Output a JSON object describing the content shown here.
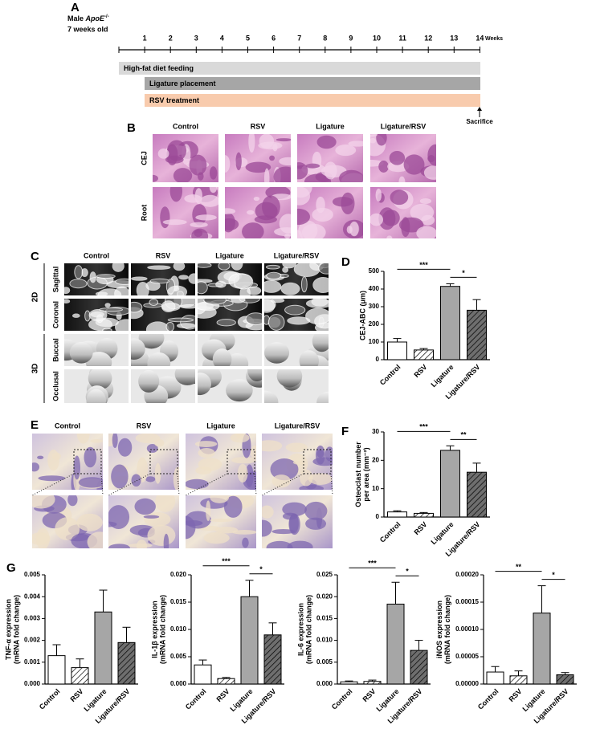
{
  "panel_labels": [
    "A",
    "B",
    "C",
    "D",
    "E",
    "F",
    "G"
  ],
  "timeline": {
    "subject_prefix": "Male",
    "subject_gene": "ApoE",
    "subject_genotype": "-/-",
    "age": "7 weeks old",
    "ticks": [
      1,
      2,
      3,
      4,
      5,
      6,
      7,
      8,
      9,
      10,
      11,
      12,
      13,
      14
    ],
    "unit": "Weeks",
    "bars": [
      "High-fat diet feeding",
      "Ligature placement",
      "RSV treatment"
    ],
    "endpoint": "Sacrifice"
  },
  "histology": {
    "columns": [
      "Control",
      "RSV",
      "Ligature",
      "Ligature/RSV"
    ],
    "rows": [
      "CEJ",
      "Root"
    ]
  },
  "microct": {
    "columns": [
      "Control",
      "RSV",
      "Ligature",
      "Ligature/RSV"
    ],
    "rows": [
      "Sagittal",
      "Coronal",
      "Buccal",
      "Occlusal"
    ],
    "groups": [
      "2D",
      "3D"
    ]
  },
  "trap": {
    "columns": [
      "Control",
      "RSV",
      "Ligature",
      "Ligature/RSV"
    ]
  },
  "chart_data": [
    {
      "type": "bar",
      "ylabel": [
        "CEJ-ABC (μm)"
      ],
      "categories": [
        "Control",
        "RSV",
        "Ligature",
        "Ligature/RSV"
      ],
      "values": [
        100,
        55,
        415,
        280
      ],
      "errors": [
        20,
        8,
        15,
        60
      ],
      "colors": [
        "#ffffff",
        "#ffffff",
        "#a6a6a6",
        "#6e6e6e"
      ],
      "hatch": [
        false,
        true,
        false,
        true
      ],
      "ylim": [
        0,
        500
      ],
      "yticks": [
        0,
        100,
        200,
        300,
        400,
        500
      ],
      "annotations": [
        {
          "label": "***",
          "from": "Control",
          "to": "Ligature"
        },
        {
          "label": "*",
          "from": "Ligature",
          "to": "Ligature/RSV"
        }
      ]
    },
    {
      "type": "bar",
      "ylabel": [
        "Osteoclast number",
        "per area (mm⁻²)"
      ],
      "categories": [
        "Control",
        "RSV",
        "Ligature",
        "Ligature/RSV"
      ],
      "values": [
        1.8,
        1.3,
        23.5,
        15.8
      ],
      "errors": [
        0.4,
        0.3,
        1.6,
        3.2
      ],
      "colors": [
        "#ffffff",
        "#ffffff",
        "#a6a6a6",
        "#6e6e6e"
      ],
      "hatch": [
        false,
        true,
        false,
        true
      ],
      "ylim": [
        0,
        30
      ],
      "yticks": [
        0,
        10,
        20,
        30
      ],
      "annotations": [
        {
          "label": "***",
          "from": "Control",
          "to": "Ligature"
        },
        {
          "label": "**",
          "from": "Ligature",
          "to": "Ligature/RSV"
        }
      ]
    },
    {
      "type": "bar",
      "ylabel": [
        "TNF-α expression",
        "(mRNA fold change)"
      ],
      "categories": [
        "Control",
        "RSV",
        "Ligature",
        "Ligature/RSV"
      ],
      "values": [
        0.0013,
        0.00075,
        0.0033,
        0.0019
      ],
      "errors": [
        0.0005,
        0.0004,
        0.001,
        0.0007
      ],
      "colors": [
        "#ffffff",
        "#ffffff",
        "#a6a6a6",
        "#6e6e6e"
      ],
      "hatch": [
        false,
        true,
        false,
        true
      ],
      "ylim": [
        0,
        0.005
      ],
      "yticks": [
        {
          "value": 0,
          "label": "0.000"
        },
        {
          "value": 0.001,
          "label": "0.001"
        },
        {
          "value": 0.002,
          "label": "0.002"
        },
        {
          "value": 0.003,
          "label": "0.003"
        },
        {
          "value": 0.004,
          "label": "0.004"
        },
        {
          "value": 0.005,
          "label": "0.005"
        }
      ],
      "annotations": []
    },
    {
      "type": "bar",
      "ylabel": [
        "IL-1β expression",
        "(mRNA fold change)"
      ],
      "categories": [
        "Control",
        "RSV",
        "Ligature",
        "Ligature/RSV"
      ],
      "values": [
        0.0035,
        0.001,
        0.016,
        0.009
      ],
      "errors": [
        0.0009,
        0.0002,
        0.003,
        0.0022
      ],
      "colors": [
        "#ffffff",
        "#ffffff",
        "#a6a6a6",
        "#6e6e6e"
      ],
      "hatch": [
        false,
        true,
        false,
        true
      ],
      "ylim": [
        0,
        0.02
      ],
      "yticks": [
        {
          "value": 0,
          "label": "0.000"
        },
        {
          "value": 0.005,
          "label": "0.005"
        },
        {
          "value": 0.01,
          "label": "0.010"
        },
        {
          "value": 0.015,
          "label": "0.015"
        },
        {
          "value": 0.02,
          "label": "0.020"
        }
      ],
      "annotations": [
        {
          "label": "***",
          "from": "Control",
          "to": "Ligature"
        },
        {
          "label": "*",
          "from": "Ligature",
          "to": "Ligature/RSV"
        }
      ]
    },
    {
      "type": "bar",
      "ylabel": [
        "IL-6 expression",
        "(mRNA fold change)"
      ],
      "categories": [
        "Control",
        "RSV",
        "Ligature",
        "Ligature/RSV"
      ],
      "values": [
        0.0005,
        0.0006,
        0.0183,
        0.0077
      ],
      "errors": [
        0.0002,
        0.0003,
        0.005,
        0.0023
      ],
      "colors": [
        "#ffffff",
        "#ffffff",
        "#a6a6a6",
        "#6e6e6e"
      ],
      "hatch": [
        false,
        true,
        false,
        true
      ],
      "ylim": [
        0,
        0.025
      ],
      "yticks": [
        {
          "value": 0,
          "label": "0.000"
        },
        {
          "value": 0.005,
          "label": "0.005"
        },
        {
          "value": 0.01,
          "label": "0.010"
        },
        {
          "value": 0.015,
          "label": "0.015"
        },
        {
          "value": 0.02,
          "label": "0.020"
        },
        {
          "value": 0.025,
          "label": "0.025"
        }
      ],
      "annotations": [
        {
          "label": "***",
          "from": "Control",
          "to": "Ligature"
        },
        {
          "label": "*",
          "from": "Ligature",
          "to": "Ligature/RSV"
        }
      ]
    },
    {
      "type": "bar",
      "ylabel": [
        "iNOS expression",
        "(mRNA fold change)"
      ],
      "categories": [
        "Control",
        "RSV",
        "Ligature",
        "Ligature/RSV"
      ],
      "values": [
        2.2e-05,
        1.5e-05,
        0.00013,
        1.7e-05
      ],
      "errors": [
        1e-05,
        9e-06,
        5e-05,
        4e-06
      ],
      "colors": [
        "#ffffff",
        "#ffffff",
        "#a6a6a6",
        "#6e6e6e"
      ],
      "hatch": [
        false,
        true,
        false,
        true
      ],
      "ylim": [
        0,
        0.0002
      ],
      "yticks": [
        {
          "value": 0,
          "label": "0.00000"
        },
        {
          "value": 5e-05,
          "label": "0.00005"
        },
        {
          "value": 0.0001,
          "label": "0.00010"
        },
        {
          "value": 0.00015,
          "label": "0.00015"
        },
        {
          "value": 0.0002,
          "label": "0.00020"
        }
      ],
      "annotations": [
        {
          "label": "**",
          "from": "Control",
          "to": "Ligature"
        },
        {
          "label": "*",
          "from": "Ligature",
          "to": "Ligature/RSV"
        }
      ]
    }
  ]
}
